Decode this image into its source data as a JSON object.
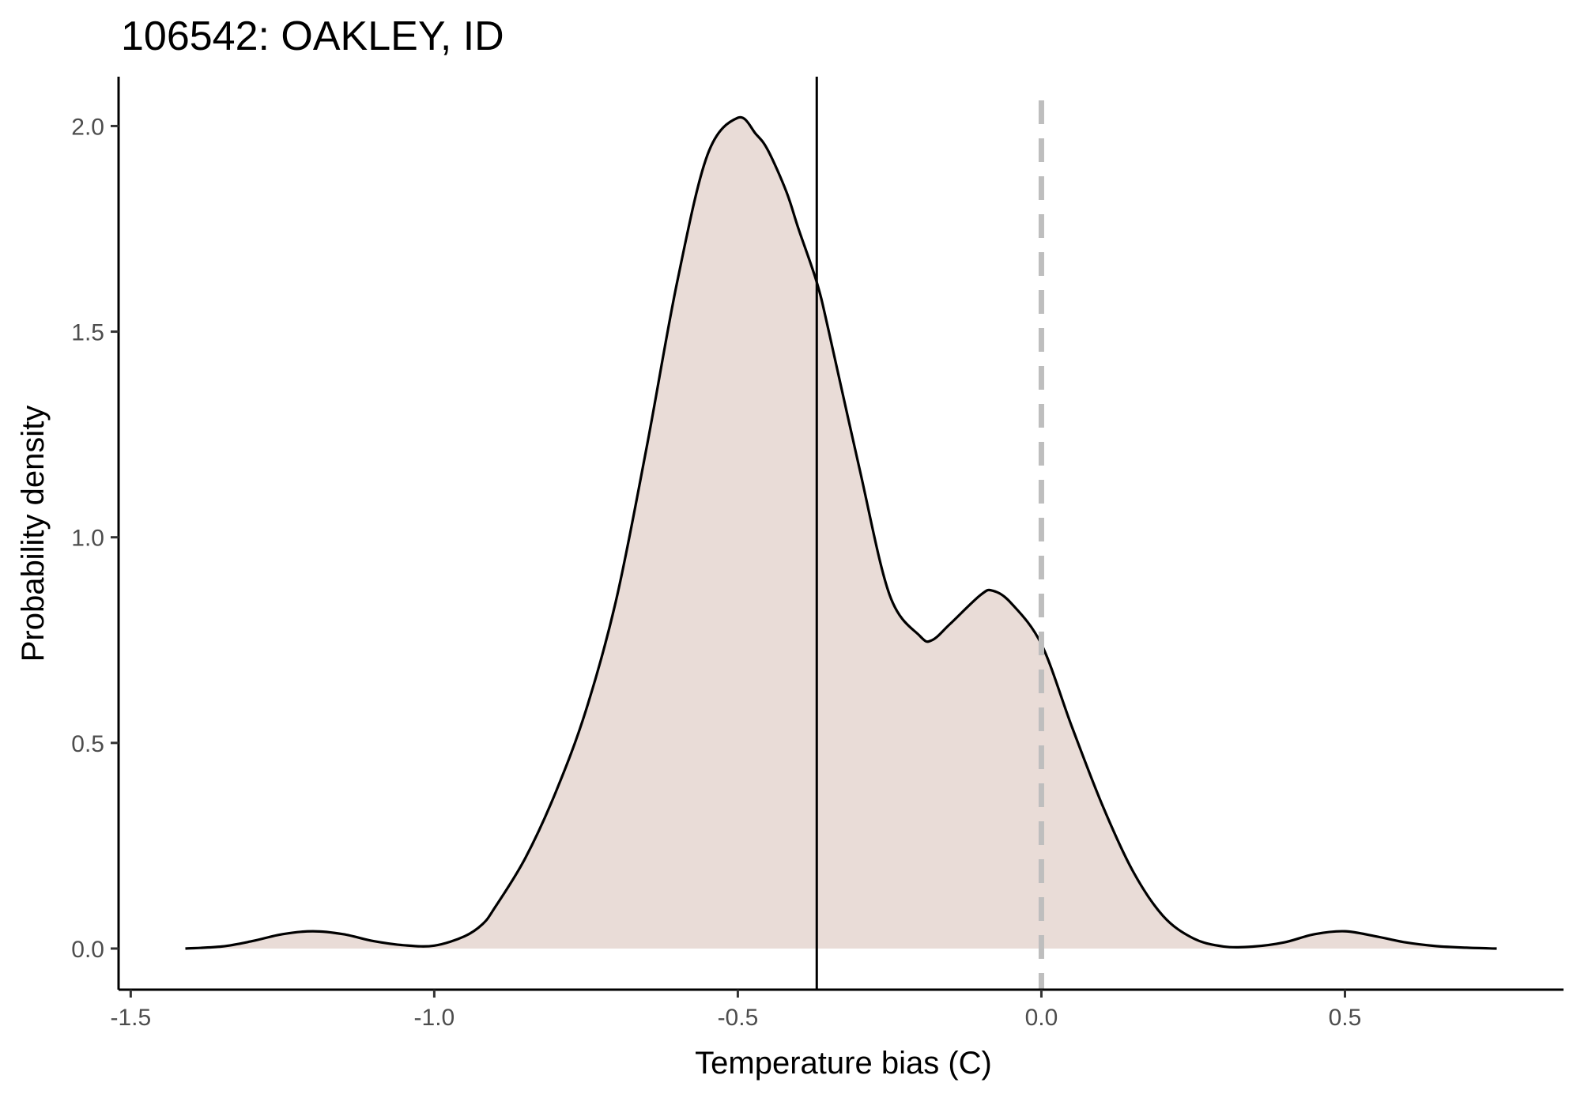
{
  "chart_data": {
    "type": "area",
    "title": "106542: OAKLEY, ID",
    "xlabel": "Temperature bias (C)",
    "ylabel": "Probability density",
    "xlim": [
      -1.52,
      0.86
    ],
    "ylim": [
      -0.1,
      2.12
    ],
    "x_ticks": [
      -1.5,
      -1.0,
      -0.5,
      0.0,
      0.5
    ],
    "x_tick_labels": [
      "-1.5",
      "-1.0",
      "-0.5",
      "0.0",
      "0.5"
    ],
    "y_ticks": [
      0.0,
      0.5,
      1.0,
      1.5,
      2.0
    ],
    "y_tick_labels": [
      "0.0",
      "0.5",
      "1.0",
      "1.5",
      "2.0"
    ],
    "grid": false,
    "fill_color": "#e9dcd7",
    "line_color": "#000000",
    "series": [
      {
        "x": [
          -1.41,
          -1.35,
          -1.3,
          -1.25,
          -1.2,
          -1.15,
          -1.1,
          -1.05,
          -1.0,
          -0.95,
          -0.92,
          -0.9,
          -0.85,
          -0.8,
          -0.75,
          -0.7,
          -0.65,
          -0.6,
          -0.55,
          -0.5,
          -0.47,
          -0.45,
          -0.42,
          -0.4,
          -0.37,
          -0.35,
          -0.3,
          -0.25,
          -0.2,
          -0.18,
          -0.15,
          -0.1,
          -0.08,
          -0.05,
          0.0,
          0.05,
          0.1,
          0.15,
          0.2,
          0.25,
          0.3,
          0.35,
          0.4,
          0.45,
          0.5,
          0.55,
          0.6,
          0.65,
          0.7,
          0.75
        ],
        "y": [
          0.0,
          0.005,
          0.018,
          0.035,
          0.042,
          0.035,
          0.018,
          0.008,
          0.007,
          0.03,
          0.06,
          0.1,
          0.22,
          0.38,
          0.58,
          0.85,
          1.22,
          1.62,
          1.93,
          2.02,
          1.98,
          1.94,
          1.84,
          1.75,
          1.62,
          1.5,
          1.17,
          0.86,
          0.76,
          0.75,
          0.79,
          0.86,
          0.87,
          0.84,
          0.74,
          0.54,
          0.35,
          0.19,
          0.08,
          0.025,
          0.005,
          0.005,
          0.015,
          0.035,
          0.042,
          0.03,
          0.015,
          0.006,
          0.002,
          0.0
        ]
      }
    ],
    "vlines": [
      {
        "x": -0.37,
        "style": "solid",
        "color": "#000000"
      },
      {
        "x": 0.0,
        "style": "dashed",
        "color": "#bebebe"
      }
    ]
  }
}
